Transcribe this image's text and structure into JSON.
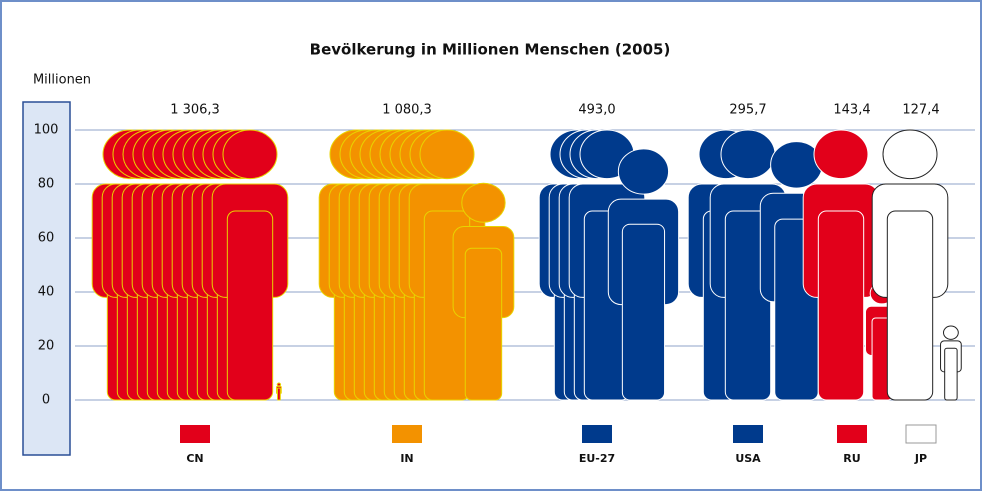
{
  "chart_data": {
    "type": "pictogram",
    "title": "Bevölkerung in Millionen Menschen (2005)",
    "y_label": "Millionen",
    "categories": [
      "CN",
      "IN",
      "EU-27",
      "USA",
      "RU",
      "JP"
    ],
    "values": [
      1306.3,
      1080.3,
      493.0,
      295.7,
      143.4,
      127.4
    ],
    "value_labels": [
      "1 306,3",
      "1 080,3",
      "493,0",
      "295,7",
      "143,4",
      "127,4"
    ],
    "colors": [
      "#e2001a",
      "#f39200",
      "#003a8c",
      "#003a8c",
      "#e2001a",
      "#ffffff"
    ],
    "edge_colors": [
      "#e8d400",
      "#e8d400",
      "#ffffff",
      "#ffffff",
      "#ffffff",
      "#222222"
    ],
    "ylim": [
      0,
      100
    ],
    "yticks": [
      0,
      20,
      40,
      60,
      80,
      100
    ],
    "grid": true
  }
}
